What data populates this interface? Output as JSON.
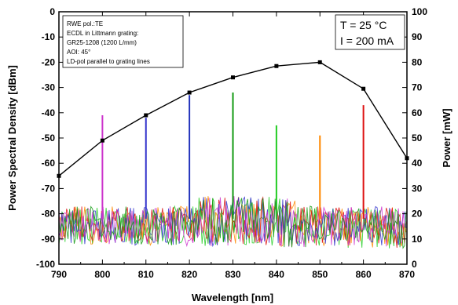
{
  "chart_data": {
    "type": "line",
    "xlabel": "Wavelength [nm]",
    "ylabel_left": "Power Spectral Density [dBm]",
    "ylabel_right": "Power [mW]",
    "xlim": [
      790,
      870
    ],
    "ylim_left": [
      -100,
      0
    ],
    "ylim_right": [
      0,
      100
    ],
    "x_ticks": [
      "790",
      "800",
      "810",
      "820",
      "830",
      "840",
      "850",
      "860",
      "870"
    ],
    "y_left_ticks": [
      "0",
      "-10",
      "-20",
      "-30",
      "-40",
      "-50",
      "-60",
      "-70",
      "-80",
      "-90",
      "-100"
    ],
    "y_right_ticks": [
      "100",
      "90",
      "80",
      "70",
      "60",
      "50",
      "40",
      "30",
      "20",
      "10",
      "0"
    ],
    "grid": false,
    "annotation_lines": [
      "RWE pol.:TE",
      "ECDL in Littmann grating:",
      "GR25-1208 (1200 L/mm)",
      "AOI: 45°",
      "LD-pol parallel to grating lines"
    ],
    "conditions": [
      "T = 25 °C",
      "I = 200 mA"
    ],
    "power_curve": {
      "axis": "right",
      "x": [
        790,
        800,
        810,
        820,
        830,
        840,
        850,
        860,
        870
      ],
      "y": [
        35,
        49,
        59,
        68,
        74,
        78.5,
        80,
        69.5,
        42
      ]
    },
    "spectral_peaks": [
      {
        "x": 800,
        "peak_dbm": -41,
        "color": "#cc33cc"
      },
      {
        "x": 810,
        "peak_dbm": -42,
        "color": "#3333cc"
      },
      {
        "x": 820,
        "peak_dbm": -33,
        "color": "#2233bb"
      },
      {
        "x": 830,
        "peak_dbm": -32,
        "color": "#119911"
      },
      {
        "x": 840,
        "peak_dbm": -45,
        "color": "#22cc22"
      },
      {
        "x": 850,
        "peak_dbm": -49,
        "color": "#ff8800"
      },
      {
        "x": 860,
        "peak_dbm": -37,
        "color": "#dd1111"
      }
    ],
    "noise_floor_dbm": [
      -94,
      -77
    ],
    "noise_colors": [
      "#22cc22",
      "#ff8800",
      "#dd1111",
      "#3333cc",
      "#cc33cc",
      "#119911"
    ]
  }
}
